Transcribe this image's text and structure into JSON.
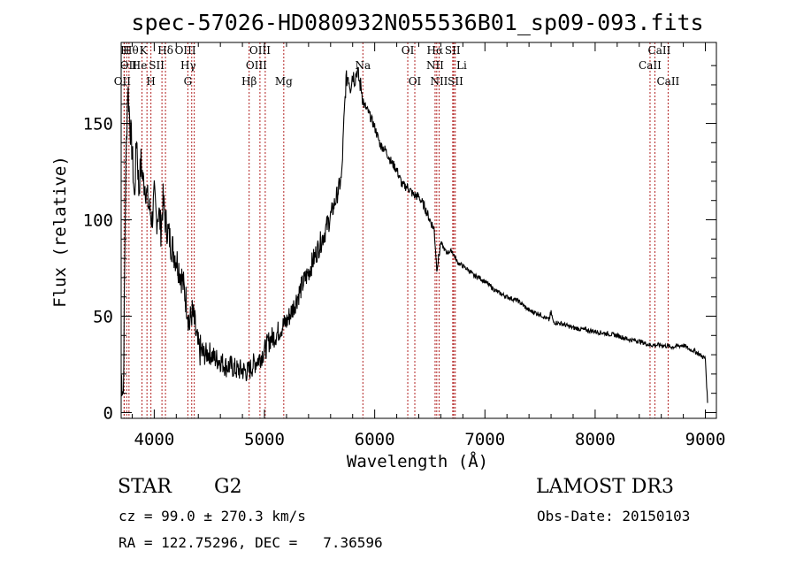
{
  "chart_data": {
    "type": "line",
    "title": "spec-57026-HD080932N055536B01_sp09-093.fits",
    "xlabel": "Wavelength (Å)",
    "ylabel": "Flux (relative)",
    "xlim": [
      3700,
      9100
    ],
    "ylim": [
      -3,
      192
    ],
    "xticks": [
      4000,
      5000,
      6000,
      7000,
      8000,
      9000
    ],
    "yticks": [
      0,
      50,
      100,
      150
    ],
    "grid": false,
    "series": [
      {
        "name": "spectrum",
        "x": [
          3700,
          3720,
          3740,
          3760,
          3780,
          3800,
          3820,
          3840,
          3860,
          3880,
          3900,
          3920,
          3940,
          3960,
          3980,
          4000,
          4020,
          4040,
          4060,
          4080,
          4100,
          4120,
          4150,
          4180,
          4200,
          4250,
          4300,
          4320,
          4340,
          4360,
          4380,
          4400,
          4450,
          4500,
          4550,
          4600,
          4650,
          4700,
          4750,
          4800,
          4850,
          4900,
          4950,
          5000,
          5050,
          5100,
          5150,
          5200,
          5250,
          5300,
          5350,
          5400,
          5450,
          5500,
          5550,
          5600,
          5650,
          5700,
          5720,
          5740,
          5760,
          5780,
          5800,
          5820,
          5840,
          5860,
          5880,
          5900,
          5950,
          6000,
          6050,
          6100,
          6150,
          6200,
          6250,
          6300,
          6350,
          6400,
          6450,
          6500,
          6540,
          6563,
          6580,
          6600,
          6650,
          6700,
          6750,
          6800,
          6850,
          6900,
          6950,
          7000,
          7100,
          7200,
          7300,
          7400,
          7500,
          7580,
          7600,
          7620,
          7700,
          7800,
          7900,
          8000,
          8100,
          8200,
          8300,
          8400,
          8500,
          8600,
          8700,
          8800,
          8850,
          8900,
          8950,
          9000,
          9020
        ],
        "y": [
          20,
          10,
          120,
          170,
          150,
          135,
          110,
          145,
          115,
          130,
          120,
          118,
          110,
          105,
          100,
          112,
          100,
          105,
          95,
          110,
          100,
          95,
          88,
          83,
          80,
          70,
          55,
          45,
          52,
          48,
          40,
          33,
          30,
          31,
          28,
          27,
          24,
          24,
          22,
          22,
          21,
          25,
          28,
          32,
          38,
          40,
          44,
          47,
          53,
          60,
          67,
          73,
          80,
          87,
          94,
          102,
          111,
          122,
          150,
          172,
          175,
          169,
          176,
          173,
          178,
          172,
          168,
          160,
          155,
          148,
          139,
          136,
          130,
          126,
          118,
          117,
          113,
          112,
          107,
          100,
          95,
          75,
          80,
          88,
          83,
          84,
          78,
          76,
          74,
          71,
          70,
          68,
          63,
          60,
          58,
          53,
          51,
          48,
          52,
          47,
          46,
          44,
          43,
          42,
          41,
          40,
          38,
          37,
          35,
          35,
          34,
          35,
          33,
          32,
          30,
          28,
          5
        ]
      }
    ],
    "lines": [
      {
        "label": "H",
        "wl": 3750,
        "row": 0,
        "dx": -2
      },
      {
        "label": "Hθ",
        "wl": 3771,
        "row": 0,
        "dx": 2
      },
      {
        "label": "K",
        "wl": 3934,
        "row": 0,
        "dx": -4
      },
      {
        "label": "Hδ",
        "wl": 4102,
        "row": 0,
        "dx": 0
      },
      {
        "label": "OIII",
        "wl": 4363,
        "row": 0,
        "dx": -10
      },
      {
        "label": "OIII",
        "wl": 4959,
        "row": 0,
        "dx": 0
      },
      {
        "label": "OI",
        "wl": 6300,
        "row": 0,
        "dx": 0
      },
      {
        "label": "Hα",
        "wl": 6563,
        "row": 0,
        "dx": -2
      },
      {
        "label": "SII",
        "wl": 6731,
        "row": 0,
        "dx": -3
      },
      {
        "label": "CaII",
        "wl": 8542,
        "row": 0,
        "dx": 5
      },
      {
        "label": "OII",
        "wl": 3727,
        "row": 1,
        "dx": 5
      },
      {
        "label": "He",
        "wl": 3889,
        "row": 1,
        "dx": -3
      },
      {
        "label": "SII",
        "wl": 4070,
        "row": 1,
        "dx": -6
      },
      {
        "label": "Hγ",
        "wl": 4340,
        "row": 1,
        "dx": -4
      },
      {
        "label": "OIII",
        "wl": 5007,
        "row": 1,
        "dx": -10
      },
      {
        "label": "Na",
        "wl": 5893,
        "row": 1,
        "dx": 0
      },
      {
        "label": "NII",
        "wl": 6548,
        "row": 1,
        "dx": 0
      },
      {
        "label": "Li",
        "wl": 6708,
        "row": 1,
        "dx": 10
      },
      {
        "label": "CaII",
        "wl": 8498,
        "row": 1,
        "dx": 0
      },
      {
        "label": "OII",
        "wl": 3727,
        "row": 2,
        "dx": -2
      },
      {
        "label": "H",
        "wl": 3970,
        "row": 2,
        "dx": 0
      },
      {
        "label": "G",
        "wl": 4305,
        "row": 2,
        "dx": 0
      },
      {
        "label": "Hβ",
        "wl": 4861,
        "row": 2,
        "dx": 0
      },
      {
        "label": "Mg",
        "wl": 5175,
        "row": 2,
        "dx": 0
      },
      {
        "label": "OI",
        "wl": 6364,
        "row": 2,
        "dx": 0
      },
      {
        "label": "NII",
        "wl": 6584,
        "row": 2,
        "dx": 0
      },
      {
        "label": "SII",
        "wl": 6717,
        "row": 2,
        "dx": 2
      },
      {
        "label": "CaII",
        "wl": 8662,
        "row": 2,
        "dx": 0
      }
    ]
  },
  "info": {
    "object_class": "STAR",
    "subclass": "G2",
    "survey": "LAMOST DR3",
    "redshift": "cz = 99.0 ± 270.3 km/s",
    "obs_date": "Obs-Date: 20150103",
    "coords": "RA = 122.75296, DEC =   7.36596"
  }
}
